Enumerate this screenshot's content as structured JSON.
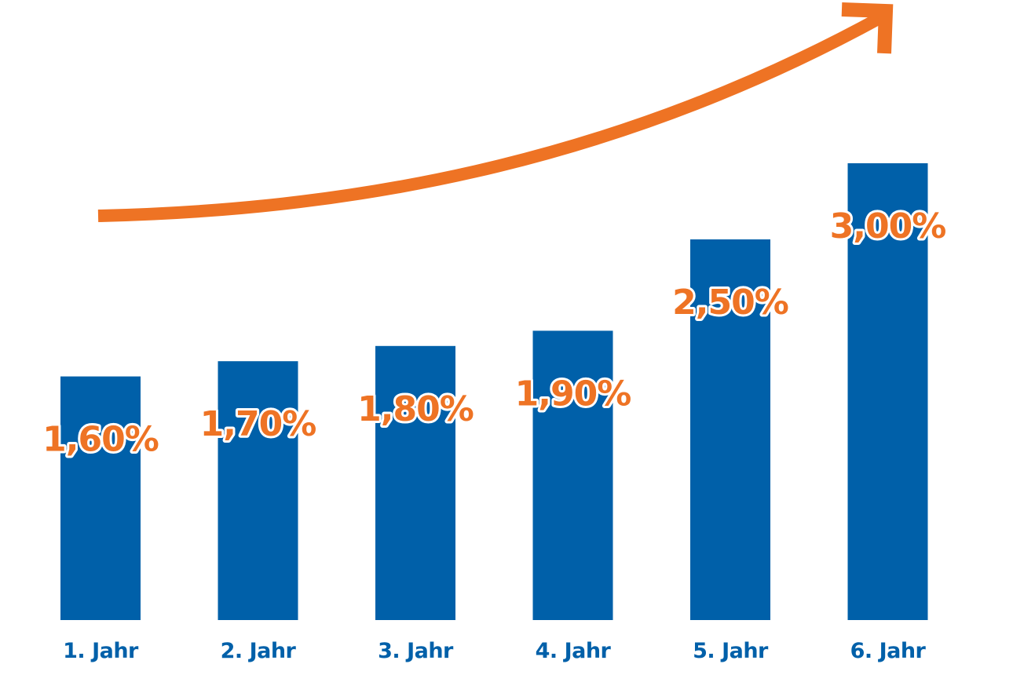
{
  "colors": {
    "bar": "#0060A9",
    "value_label": "#EE7324",
    "category_label": "#0060A9",
    "arrow": "#EE7324"
  },
  "decorations": {
    "arrow_icon": "trend-up-arrow-icon"
  },
  "chart_data": {
    "type": "bar",
    "categories": [
      "1. Jahr",
      "2. Jahr",
      "3. Jahr",
      "4. Jahr",
      "5. Jahr",
      "6. Jahr"
    ],
    "values": [
      1.6,
      1.7,
      1.8,
      1.9,
      2.5,
      3.0
    ],
    "value_labels": [
      "1,60%",
      "1,70%",
      "1,80%",
      "1,90%",
      "2,50%",
      "3,00%"
    ],
    "title": "",
    "xlabel": "",
    "ylabel": "",
    "ylim": [
      0,
      3.0
    ],
    "grid": false,
    "legend": "none"
  }
}
